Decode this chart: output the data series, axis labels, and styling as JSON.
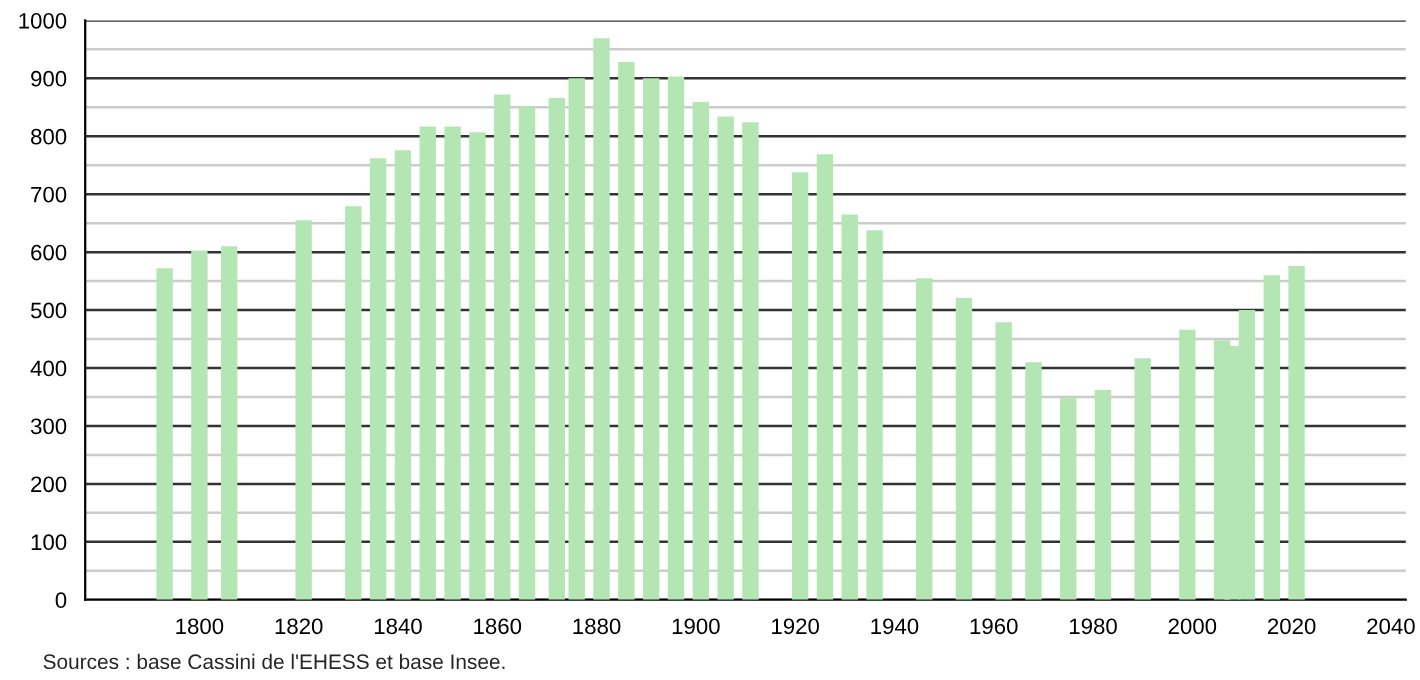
{
  "chart_data": {
    "type": "bar",
    "x": [
      1793,
      1800,
      1806,
      1821,
      1831,
      1836,
      1841,
      1846,
      1851,
      1856,
      1861,
      1866,
      1872,
      1876,
      1881,
      1886,
      1891,
      1896,
      1901,
      1906,
      1911,
      1921,
      1926,
      1931,
      1936,
      1946,
      1954,
      1962,
      1968,
      1975,
      1982,
      1990,
      1999,
      2006,
      2008,
      2011,
      2016,
      2021
    ],
    "values": [
      572,
      603,
      610,
      655,
      679,
      762,
      776,
      817,
      817,
      807,
      872,
      852,
      866,
      900,
      969,
      928,
      900,
      903,
      859,
      834,
      824,
      738,
      769,
      665,
      638,
      555,
      521,
      479,
      410,
      348,
      362,
      417,
      466,
      448,
      438,
      500,
      560,
      576
    ],
    "color": "#b3e6b3",
    "xlim": [
      1777,
      2043
    ],
    "xticks": [
      1800,
      1820,
      1840,
      1860,
      1880,
      1900,
      1920,
      1940,
      1960,
      1980,
      2000,
      2020,
      2040
    ],
    "ylim": [
      0,
      1000
    ],
    "yticks": [
      0,
      100,
      200,
      300,
      400,
      500,
      600,
      700,
      800,
      900,
      1000
    ],
    "grid": "y",
    "annotations": [
      "Sources : base Cassini de l'EHESS et base Insee."
    ]
  }
}
